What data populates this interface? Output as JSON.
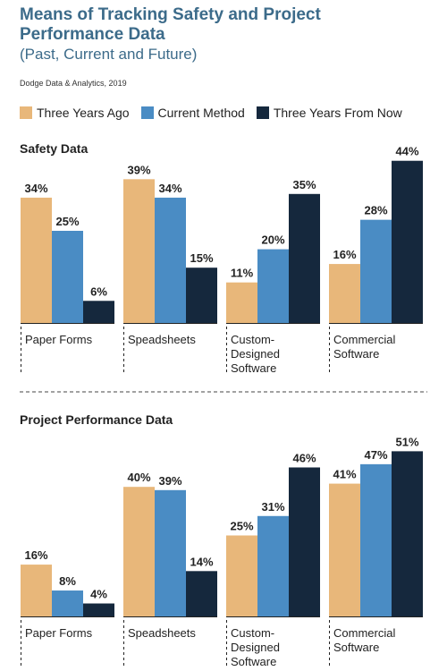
{
  "header": {
    "title_line1": "Means of Tracking Safety and Project",
    "title_line2": "Performance Data",
    "subtitle": "(Past, Current and Future)",
    "source": "Dodge Data & Analytics, 2019"
  },
  "colors": {
    "three_years_ago": "#e8b77a",
    "current_method": "#4a8cc4",
    "three_years_from_now": "#15283d"
  },
  "chart_data": [
    {
      "type": "bar",
      "title": "Safety Data",
      "categories": [
        [
          "Paper Forms"
        ],
        [
          "Speadsheets"
        ],
        [
          "Custom-",
          "Designed",
          "Software"
        ],
        [
          "Commercial",
          "Software"
        ]
      ],
      "series": [
        {
          "name": "Three Years Ago",
          "values": [
            34,
            39,
            11,
            16
          ]
        },
        {
          "name": "Current Method",
          "values": [
            25,
            34,
            20,
            28
          ]
        },
        {
          "name": "Three Years From Now",
          "values": [
            6,
            15,
            35,
            44
          ]
        }
      ],
      "value_suffix": "%",
      "legend": "top"
    },
    {
      "type": "bar",
      "title": "Project Performance Data",
      "categories": [
        [
          "Paper Forms"
        ],
        [
          "Speadsheets"
        ],
        [
          "Custom-",
          "Designed",
          "Software"
        ],
        [
          "Commercial",
          "Software"
        ]
      ],
      "series": [
        {
          "name": "Three Years Ago",
          "values": [
            16,
            40,
            25,
            41
          ]
        },
        {
          "name": "Current Method",
          "values": [
            8,
            39,
            31,
            47
          ]
        },
        {
          "name": "Three Years From Now",
          "values": [
            4,
            14,
            46,
            51
          ]
        }
      ],
      "value_suffix": "%",
      "legend": "top"
    }
  ]
}
